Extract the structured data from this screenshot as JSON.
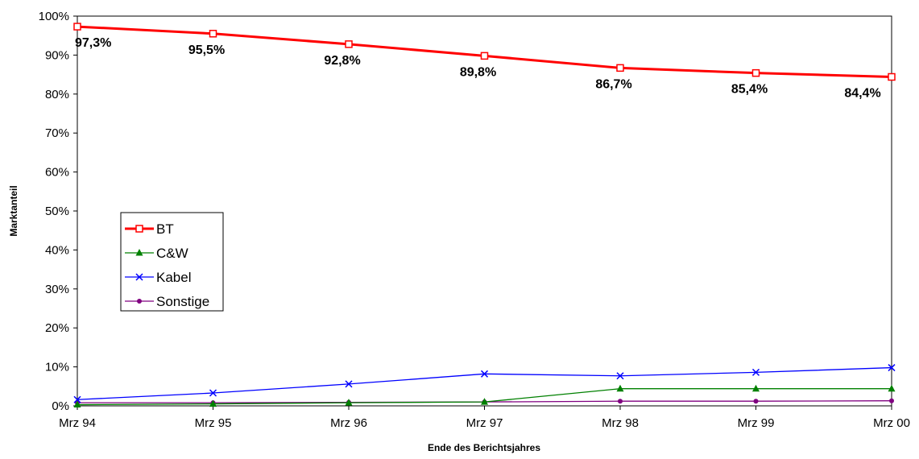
{
  "chart_data": {
    "type": "line",
    "title": "",
    "xlabel": "Ende des Berichtsjahres",
    "ylabel": "Marktanteil",
    "categories": [
      "Mrz 94",
      "Mrz 95",
      "Mrz 96",
      "Mrz 97",
      "Mrz 98",
      "Mrz 99",
      "Mrz 00"
    ],
    "ylim": [
      0,
      100
    ],
    "yticks": [
      "0%",
      "10%",
      "20%",
      "30%",
      "40%",
      "50%",
      "60%",
      "70%",
      "80%",
      "90%",
      "100%"
    ],
    "grid": false,
    "legend_position": "left-center",
    "series": [
      {
        "name": "BT",
        "values": [
          97.3,
          95.5,
          92.8,
          89.8,
          86.7,
          85.4,
          84.4
        ],
        "labels": [
          "97,3%",
          "95,5%",
          "92,8%",
          "89,8%",
          "86,7%",
          "85,4%",
          "84,4%"
        ],
        "color": "#ff0000",
        "marker": "square-open"
      },
      {
        "name": "C&W",
        "values": [
          0.3,
          0.5,
          0.8,
          1.0,
          4.4,
          4.4,
          4.4
        ],
        "color": "#008000",
        "marker": "triangle"
      },
      {
        "name": "Kabel",
        "values": [
          1.6,
          3.3,
          5.6,
          8.2,
          7.7,
          8.6,
          9.8
        ],
        "color": "#0000ff",
        "marker": "x"
      },
      {
        "name": "Sonstige",
        "values": [
          0.8,
          0.8,
          0.9,
          1.0,
          1.2,
          1.2,
          1.3
        ],
        "color": "#800080",
        "marker": "circle"
      }
    ]
  }
}
